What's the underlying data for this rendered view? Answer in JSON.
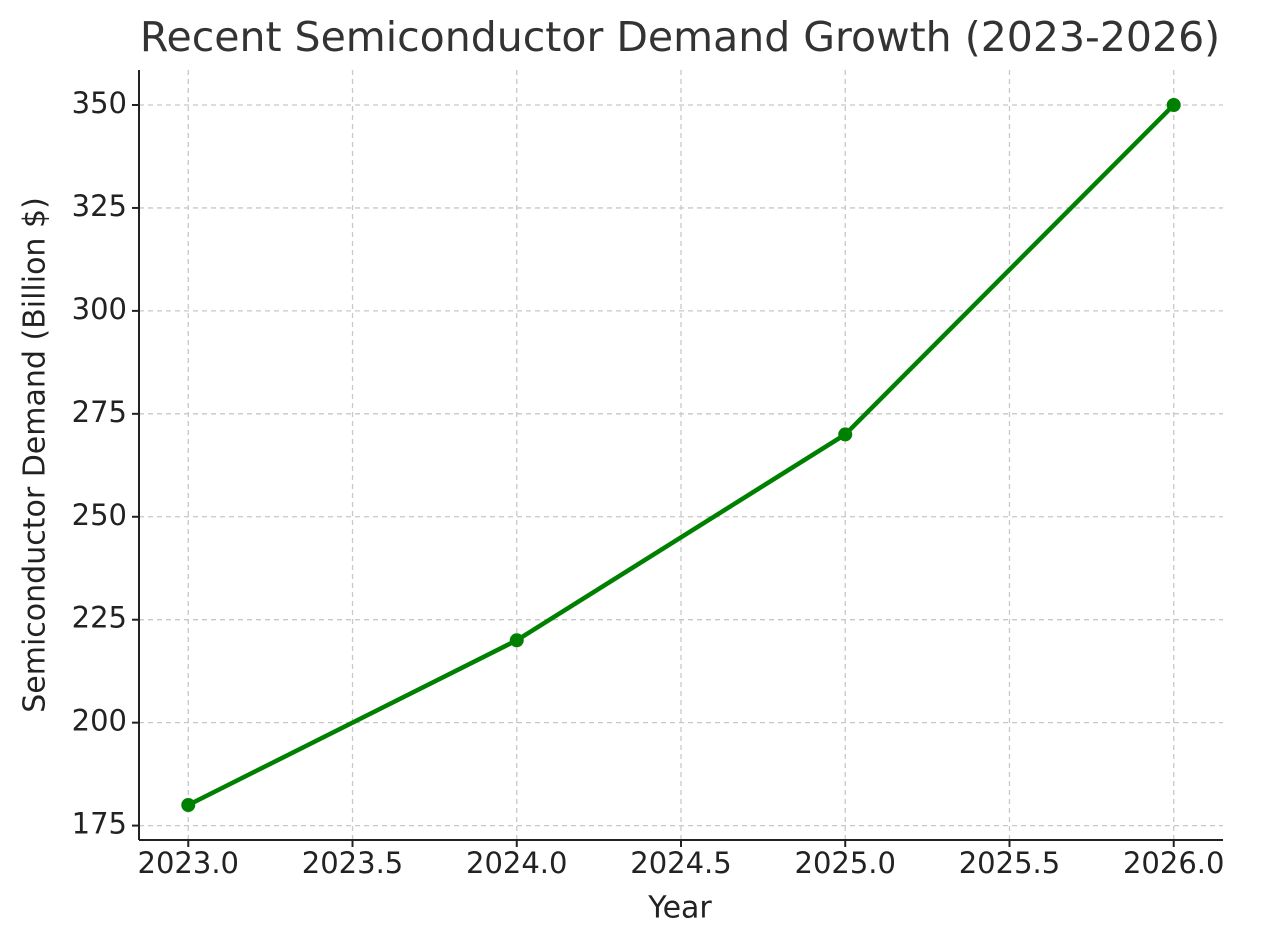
{
  "chart_data": {
    "type": "line",
    "title": "Recent Semiconductor Demand Growth (2023-2026)",
    "x_label": "Year",
    "y_label": "Semiconductor Demand (Billion $)",
    "x": [
      2023,
      2024,
      2025,
      2026
    ],
    "series": [
      {
        "color": "#008000",
        "values": [
          180,
          220,
          270,
          350
        ]
      }
    ],
    "xlim": [
      2022.85,
      2026.15
    ],
    "xticks": [
      {
        "value": 2023,
        "label": "2023.0"
      },
      {
        "value": 2023.5,
        "label": "2023.5"
      },
      {
        "value": 2024,
        "label": "2024.0"
      },
      {
        "value": 2024.5,
        "label": "2024.5"
      },
      {
        "value": 2025,
        "label": "2025.0"
      },
      {
        "value": 2025.5,
        "label": "2025.5"
      },
      {
        "value": 2026,
        "label": "2026.0"
      }
    ],
    "ylim": [
      171.5,
      358.5
    ],
    "yticks": [
      175,
      200,
      225,
      250,
      275,
      300,
      325,
      350
    ],
    "grid": true
  }
}
